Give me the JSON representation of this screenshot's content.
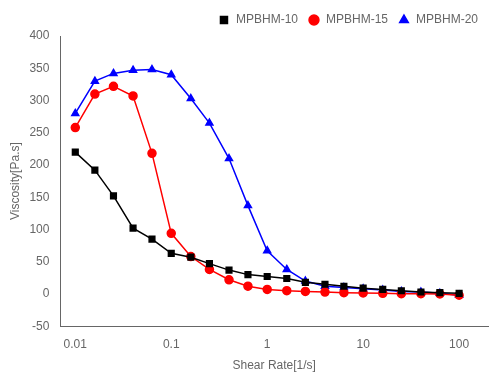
{
  "chart_data": {
    "type": "line",
    "xlabel": "Shear Rate[1/s]",
    "ylabel": "Viscosity[Pa.s]",
    "log": "x",
    "xlim": [
      0.007,
      200
    ],
    "ylim": [
      -50,
      400
    ],
    "xticks": [
      0.01,
      0.1,
      1,
      10,
      100
    ],
    "yticks": [
      -50,
      0,
      50,
      100,
      150,
      200,
      250,
      300,
      350,
      400
    ],
    "grid": false,
    "legend": "upper right",
    "x": [
      0.01,
      0.016,
      0.025,
      0.04,
      0.063,
      0.1,
      0.16,
      0.25,
      0.4,
      0.63,
      1.0,
      1.6,
      2.5,
      4.0,
      6.3,
      10.0,
      16.0,
      25.0,
      40.0,
      63.0,
      100.0
    ],
    "series": [
      {
        "name": "MPBHM-10",
        "color": "black",
        "marker": "square",
        "values": [
          220,
          192,
          152,
          102,
          85,
          63,
          57,
          47,
          37,
          30,
          27,
          24,
          18,
          15,
          12,
          9,
          7,
          5,
          3,
          2,
          1
        ]
      },
      {
        "name": "MPBHM-15",
        "color": "red",
        "marker": "circle",
        "values": [
          258,
          310,
          322,
          307,
          218,
          94,
          58,
          38,
          22,
          12,
          7,
          5,
          4,
          3,
          2,
          1.5,
          1,
          0.5,
          0.5,
          0,
          -2
        ]
      },
      {
        "name": "MPBHM-20",
        "color": "blue",
        "marker": "triangle",
        "values": [
          280,
          330,
          342,
          347,
          348,
          340,
          303,
          265,
          210,
          137,
          67,
          38,
          20,
          12,
          10,
          8,
          6,
          4,
          3,
          1,
          -2
        ]
      }
    ]
  }
}
